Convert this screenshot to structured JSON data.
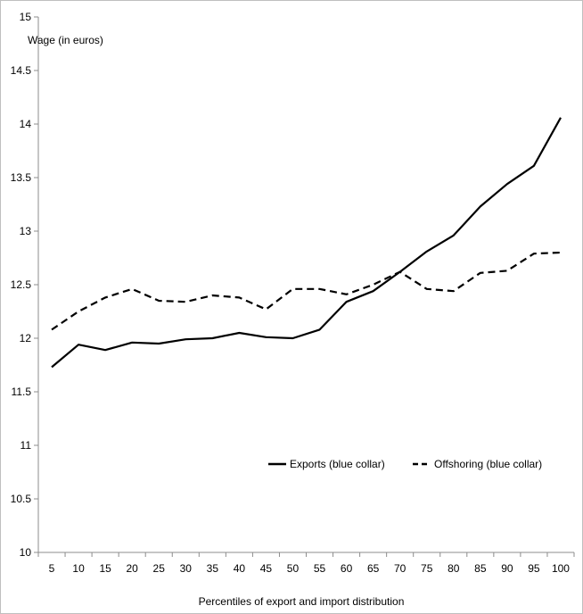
{
  "chart_data": {
    "type": "line",
    "title": "",
    "ylabel": "Wage (in euros)",
    "xlabel": "Percentiles of export and import distribution",
    "categories": [
      "5",
      "10",
      "15",
      "20",
      "25",
      "30",
      "35",
      "40",
      "45",
      "50",
      "55",
      "60",
      "65",
      "70",
      "75",
      "80",
      "85",
      "90",
      "95",
      "100"
    ],
    "ylim": [
      10,
      15
    ],
    "yticks": [
      "10",
      "10.5",
      "11",
      "11.5",
      "12",
      "12.5",
      "13",
      "13.5",
      "14",
      "14.5",
      "15"
    ],
    "grid": false,
    "legend_position": "bottom-right",
    "series": [
      {
        "name": "Exports (blue collar)",
        "style": "solid",
        "color": "#000000",
        "values": [
          11.73,
          11.94,
          11.89,
          11.96,
          11.95,
          11.99,
          12.0,
          12.05,
          12.01,
          12.0,
          12.08,
          12.34,
          12.44,
          12.62,
          12.81,
          12.96,
          13.23,
          13.44,
          13.61,
          14.06
        ]
      },
      {
        "name": "Offshoring (blue collar)",
        "style": "dashed",
        "color": "#000000",
        "values": [
          12.08,
          12.25,
          12.38,
          12.46,
          12.35,
          12.34,
          12.4,
          12.38,
          12.27,
          12.46,
          12.46,
          12.41,
          12.5,
          12.62,
          12.46,
          12.44,
          12.61,
          12.63,
          12.79,
          12.8
        ]
      }
    ]
  }
}
